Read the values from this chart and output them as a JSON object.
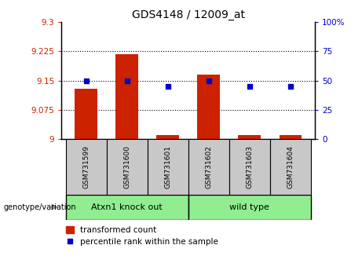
{
  "title": "GDS4148 / 12009_at",
  "samples": [
    "GSM731599",
    "GSM731600",
    "GSM731601",
    "GSM731602",
    "GSM731603",
    "GSM731604"
  ],
  "red_values": [
    9.13,
    9.218,
    9.01,
    9.165,
    9.01,
    9.01
  ],
  "blue_values": [
    50,
    50,
    45,
    50,
    45,
    45
  ],
  "ylim_left": [
    9.0,
    9.3
  ],
  "ylim_right": [
    0,
    100
  ],
  "yticks_left": [
    9.0,
    9.075,
    9.15,
    9.225,
    9.3
  ],
  "ytick_labels_left": [
    "9",
    "9.075",
    "9.15",
    "9.225",
    "9.3"
  ],
  "yticks_right": [
    0,
    25,
    50,
    75,
    100
  ],
  "ytick_labels_right": [
    "0",
    "25",
    "50",
    "75",
    "100%"
  ],
  "group1_label": "Atxn1 knock out",
  "group2_label": "wild type",
  "group_color": "#90EE90",
  "genotype_label": "genotype/variation",
  "legend_red": "transformed count",
  "legend_blue": "percentile rank within the sample",
  "bar_color": "#CC2200",
  "dot_color": "#0000CC",
  "bar_bottom": 9.0,
  "bar_width": 0.55,
  "grid_lines": [
    9.075,
    9.15,
    9.225
  ],
  "sample_box_color": "#C8C8C8"
}
